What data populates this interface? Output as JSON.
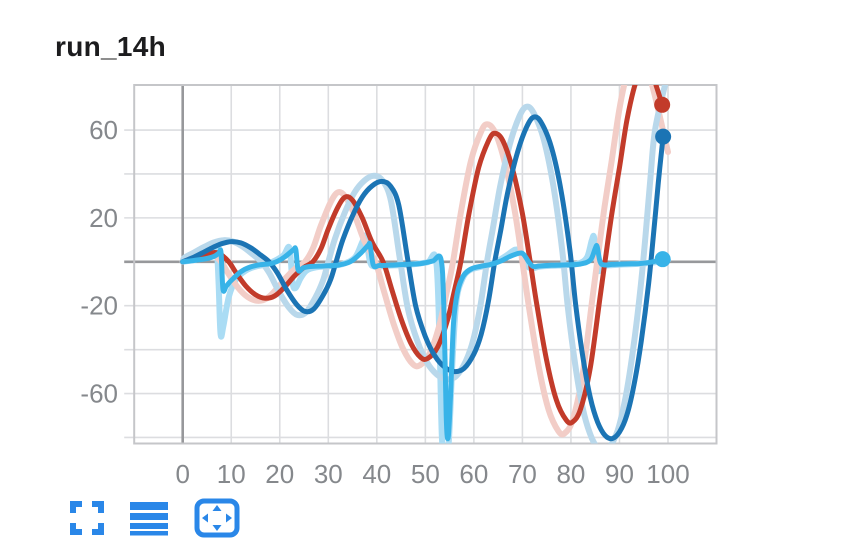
{
  "chart": {
    "title": "run_14h"
  },
  "toolbar": {
    "accent": "#2a87e8",
    "buttons": [
      {
        "id": "fullscreen",
        "icon": "fullscreen-corners-icon"
      },
      {
        "id": "lines",
        "icon": "hamburger-lines-icon"
      },
      {
        "id": "pan",
        "icon": "pan-arrows-icon"
      }
    ]
  },
  "chart_data": {
    "type": "line",
    "title": "run_14h",
    "xlabel": "",
    "ylabel": "",
    "grid": true,
    "legend": "none",
    "x_range": [
      -10,
      110
    ],
    "y_range": [
      -82.7,
      80.5
    ],
    "x_ticks": [
      0,
      10,
      20,
      30,
      40,
      50,
      60,
      70,
      80,
      90,
      100
    ],
    "y_ticks_labeled": [
      60,
      20,
      -20,
      -60
    ],
    "y_gridlines": [
      -80,
      -60,
      -40,
      -20,
      0,
      20,
      40,
      60
    ],
    "colors": {
      "red": "#c23b2a",
      "blue": "#1b74b4",
      "cyan": "#38b3e8",
      "red_raw": "#f2cdc7",
      "blue_raw": "#b9d8eb",
      "cyan_raw": "#aadcf4",
      "gridline": "#dcdde0",
      "axis_line": "#97989b",
      "tick_text": "#85888c"
    },
    "series": [
      {
        "name": "cyan-raw",
        "color": "#aadcf4",
        "width": 6,
        "points": [
          [
            0,
            0
          ],
          [
            3,
            1
          ],
          [
            5,
            2
          ],
          [
            6.3,
            3.5
          ],
          [
            7,
            5.2
          ],
          [
            7.4,
            -10
          ],
          [
            7.8,
            -33
          ],
          [
            8.4,
            -29
          ],
          [
            9.5,
            -16
          ],
          [
            11,
            -8
          ],
          [
            13,
            -4
          ],
          [
            15,
            -2.2
          ],
          [
            17,
            -1.3
          ],
          [
            19,
            0.5
          ],
          [
            20.8,
            3
          ],
          [
            22,
            6.3
          ],
          [
            22.6,
            -9
          ],
          [
            23.2,
            -12
          ],
          [
            24.3,
            -7.5
          ],
          [
            25.5,
            -4
          ],
          [
            27.5,
            -2.5
          ],
          [
            30,
            -2
          ],
          [
            33,
            -1
          ],
          [
            35.5,
            2
          ],
          [
            37,
            9
          ],
          [
            37.7,
            11.5
          ],
          [
            38.6,
            0
          ],
          [
            39.6,
            -2.2
          ],
          [
            42,
            -1.8
          ],
          [
            45,
            -1.5
          ],
          [
            48,
            -1
          ],
          [
            50.5,
            -0.2
          ],
          [
            52.2,
            1
          ],
          [
            52.9,
            -35
          ],
          [
            53.4,
            -80
          ],
          [
            54,
            -84
          ],
          [
            54.8,
            -83
          ],
          [
            55.6,
            -45
          ],
          [
            56.4,
            -18
          ],
          [
            57.6,
            -8
          ],
          [
            59,
            -4
          ],
          [
            61,
            -2.5
          ],
          [
            63,
            -1.5
          ],
          [
            65,
            0.5
          ],
          [
            66.8,
            3
          ],
          [
            68.5,
            5.5
          ],
          [
            69.5,
            4.5
          ],
          [
            70.6,
            -1
          ],
          [
            71.8,
            -3
          ],
          [
            73.5,
            -2.2
          ],
          [
            76,
            -1.8
          ],
          [
            79,
            -1.5
          ],
          [
            81.5,
            -0.8
          ],
          [
            83.3,
            2
          ],
          [
            84.3,
            9.8
          ],
          [
            84.8,
            10.8
          ],
          [
            85.6,
            -3.5
          ],
          [
            86.5,
            -2
          ],
          [
            88.5,
            -1.5
          ],
          [
            91,
            -1.2
          ],
          [
            94,
            -0.9
          ],
          [
            97,
            -0.3
          ],
          [
            100,
            0.8
          ]
        ]
      },
      {
        "name": "red-raw",
        "color": "#f2cdc7",
        "width": 6,
        "base": "red-smooth",
        "dx": -1.6,
        "scale": 1.07,
        "clamp_x0": true,
        "append": [
          [
            100,
            50
          ]
        ]
      },
      {
        "name": "blue-raw",
        "color": "#b9d8eb",
        "width": 6,
        "base": "blue-smooth",
        "dx": -1.6,
        "scale": 1.07,
        "clamp_x0": true,
        "append": [
          [
            100,
            86
          ]
        ]
      },
      {
        "name": "red-smooth",
        "color": "#c23b2a",
        "width": 5,
        "points": [
          [
            0,
            0
          ],
          [
            2,
            1.6
          ],
          [
            4,
            3.1
          ],
          [
            6,
            4.1
          ],
          [
            7.5,
            3.8
          ],
          [
            9.5,
            0
          ],
          [
            11,
            -5
          ],
          [
            13,
            -11
          ],
          [
            15,
            -15
          ],
          [
            17,
            -16.6
          ],
          [
            19,
            -15.5
          ],
          [
            21,
            -11.5
          ],
          [
            23,
            -6.5
          ],
          [
            25,
            -2.5
          ],
          [
            26.8,
            0
          ],
          [
            28.5,
            6
          ],
          [
            30,
            15
          ],
          [
            32,
            25
          ],
          [
            33.5,
            29.5
          ],
          [
            35,
            28
          ],
          [
            37,
            20
          ],
          [
            39,
            9
          ],
          [
            41.3,
            0
          ],
          [
            43,
            -12
          ],
          [
            45,
            -26
          ],
          [
            47,
            -37
          ],
          [
            49,
            -43.5
          ],
          [
            50.5,
            -44
          ],
          [
            52.5,
            -39
          ],
          [
            54.5,
            -27
          ],
          [
            56,
            -13
          ],
          [
            57.3,
            0
          ],
          [
            59,
            22
          ],
          [
            61,
            43
          ],
          [
            63,
            55
          ],
          [
            64.3,
            58.5
          ],
          [
            66,
            55
          ],
          [
            68,
            42
          ],
          [
            70,
            22
          ],
          [
            71.6,
            0
          ],
          [
            73,
            -20
          ],
          [
            75,
            -45
          ],
          [
            77,
            -63
          ],
          [
            79,
            -72
          ],
          [
            80.3,
            -73
          ],
          [
            82,
            -67
          ],
          [
            84,
            -48
          ],
          [
            86,
            -16
          ],
          [
            87.2,
            3
          ],
          [
            88.5,
            23
          ],
          [
            90,
            43
          ],
          [
            91.5,
            64
          ],
          [
            93,
            79
          ],
          [
            94.5,
            88
          ],
          [
            96,
            90.5
          ],
          [
            97.3,
            82
          ],
          [
            98.8,
            71.5
          ]
        ]
      },
      {
        "name": "blue-smooth",
        "color": "#1b74b4",
        "width": 5,
        "points": [
          [
            0,
            0
          ],
          [
            2,
            1.8
          ],
          [
            4,
            4
          ],
          [
            6,
            6.3
          ],
          [
            8,
            8.2
          ],
          [
            10,
            9.2
          ],
          [
            12,
            8.6
          ],
          [
            14,
            6.4
          ],
          [
            16,
            3.2
          ],
          [
            17.8,
            0
          ],
          [
            19.5,
            -5
          ],
          [
            21.5,
            -13
          ],
          [
            23.5,
            -19.5
          ],
          [
            25.2,
            -22.6
          ],
          [
            27,
            -21.5
          ],
          [
            29,
            -15
          ],
          [
            30.5,
            -8
          ],
          [
            31.6,
            0
          ],
          [
            33,
            10
          ],
          [
            35,
            21
          ],
          [
            37,
            29.5
          ],
          [
            39,
            34.5
          ],
          [
            41,
            36.6
          ],
          [
            42.8,
            34.5
          ],
          [
            44.5,
            26
          ],
          [
            46.3,
            2
          ],
          [
            48,
            -20
          ],
          [
            50,
            -34
          ],
          [
            52,
            -43
          ],
          [
            54,
            -48
          ],
          [
            56,
            -50
          ],
          [
            58,
            -48.5
          ],
          [
            60,
            -42
          ],
          [
            61.5,
            -33
          ],
          [
            63,
            -18
          ],
          [
            64.3,
            0
          ],
          [
            65.5,
            14
          ],
          [
            67,
            32
          ],
          [
            69,
            50
          ],
          [
            71,
            62
          ],
          [
            72.5,
            66
          ],
          [
            74,
            63
          ],
          [
            76,
            52
          ],
          [
            78,
            32
          ],
          [
            79.8,
            5
          ],
          [
            81,
            -20
          ],
          [
            82.5,
            -44
          ],
          [
            84,
            -62
          ],
          [
            85.5,
            -73
          ],
          [
            87,
            -79
          ],
          [
            88.5,
            -80.5
          ],
          [
            90,
            -77.5
          ],
          [
            91.5,
            -70
          ],
          [
            93,
            -56
          ],
          [
            94.5,
            -36
          ],
          [
            96,
            -10
          ],
          [
            97,
            12
          ],
          [
            98,
            36
          ],
          [
            99,
            57
          ]
        ]
      },
      {
        "name": "cyan-smooth",
        "color": "#38b3e8",
        "width": 5,
        "points": [
          [
            0,
            0
          ],
          [
            3,
            0.8
          ],
          [
            5,
            1.5
          ],
          [
            6.5,
            2.5
          ],
          [
            7.5,
            4
          ],
          [
            7.9,
            4.3
          ],
          [
            8.3,
            -12.5
          ],
          [
            9,
            -11
          ],
          [
            10,
            -8.5
          ],
          [
            12,
            -4.5
          ],
          [
            14,
            -2.3
          ],
          [
            16,
            -1.3
          ],
          [
            18,
            -0.9
          ],
          [
            19.5,
            0.2
          ],
          [
            21,
            2.2
          ],
          [
            22.8,
            5.4
          ],
          [
            23.3,
            5.6
          ],
          [
            23.8,
            -3.8
          ],
          [
            24.8,
            -2.8
          ],
          [
            26,
            -2.2
          ],
          [
            29,
            -1.9
          ],
          [
            32,
            -1.5
          ],
          [
            34.5,
            0
          ],
          [
            36.5,
            3.5
          ],
          [
            38.2,
            7.5
          ],
          [
            38.6,
            7.7
          ],
          [
            39.3,
            -1.6
          ],
          [
            40.5,
            -1.7
          ],
          [
            43,
            -1.5
          ],
          [
            46,
            -1.2
          ],
          [
            49,
            -0.8
          ],
          [
            51.5,
            0.3
          ],
          [
            53.2,
            1.3
          ],
          [
            53.8,
            -20
          ],
          [
            54.3,
            -70
          ],
          [
            54.7,
            -80
          ],
          [
            55.2,
            -60
          ],
          [
            55.8,
            -28
          ],
          [
            56.6,
            -14
          ],
          [
            57.8,
            -6.5
          ],
          [
            59.5,
            -3.2
          ],
          [
            61.5,
            -2
          ],
          [
            63.5,
            -1.2
          ],
          [
            65.5,
            0.3
          ],
          [
            67.4,
            2.4
          ],
          [
            69.3,
            3.9
          ],
          [
            70.2,
            3.5
          ],
          [
            71.3,
            0
          ],
          [
            72.2,
            -2.1
          ],
          [
            73.5,
            -1.9
          ],
          [
            76,
            -1.6
          ],
          [
            79,
            -1.4
          ],
          [
            82,
            -1
          ],
          [
            84,
            0.8
          ],
          [
            85,
            6
          ],
          [
            85.4,
            7
          ],
          [
            86,
            0
          ],
          [
            86.8,
            -1.4
          ],
          [
            88.5,
            -1.2
          ],
          [
            91,
            -1
          ],
          [
            94,
            -0.8
          ],
          [
            96.5,
            -0.2
          ],
          [
            98.9,
            1.2
          ]
        ]
      }
    ],
    "end_dots": [
      {
        "name": "red-end-dot",
        "x": 98.8,
        "y": 71.5,
        "r": 8,
        "color": "#c23b2a"
      },
      {
        "name": "blue-end-dot",
        "x": 99,
        "y": 57,
        "r": 8,
        "color": "#1b74b4"
      },
      {
        "name": "cyan-end-dot",
        "x": 98.9,
        "y": 1.2,
        "r": 8,
        "color": "#38b3e8"
      }
    ]
  }
}
